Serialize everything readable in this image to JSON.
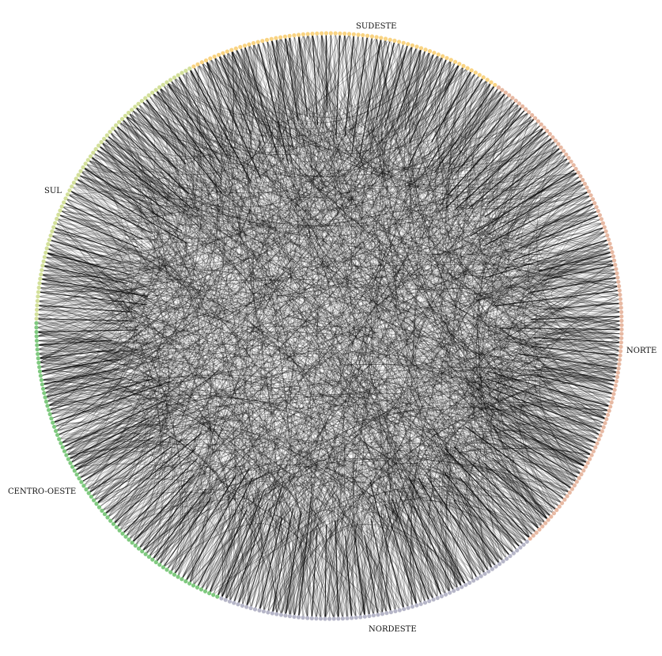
{
  "diagram": {
    "type": "chord-network",
    "regions": [
      {
        "key": "sudeste",
        "label": "SUDESTE",
        "color": "#f9d483"
      },
      {
        "key": "norte",
        "label": "NORTE",
        "color": "#e7b9a3"
      },
      {
        "key": "nordeste",
        "label": "NORDESTE",
        "color": "#b6b6c8"
      },
      {
        "key": "centro_oeste",
        "label": "CENTRO-OESTE",
        "color": "#7fc97f"
      },
      {
        "key": "sul",
        "label": "SUL",
        "color": "#d3e09b"
      }
    ],
    "edge_color": "#000000"
  }
}
